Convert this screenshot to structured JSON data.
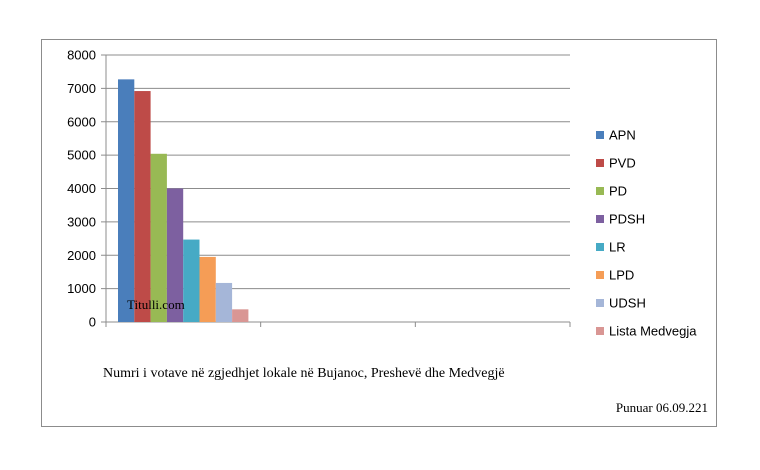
{
  "chart_data": {
    "type": "bar",
    "categories": [
      ""
    ],
    "series": [
      {
        "name": "APN",
        "values": [
          7270
        ],
        "color": "#4a7ebb"
      },
      {
        "name": "PVD",
        "values": [
          6920
        ],
        "color": "#be4b48"
      },
      {
        "name": "PD",
        "values": [
          5040
        ],
        "color": "#98b954"
      },
      {
        "name": "PDSH",
        "values": [
          4000
        ],
        "color": "#7d60a0"
      },
      {
        "name": "LR",
        "values": [
          2470
        ],
        "color": "#46aac5"
      },
      {
        "name": "LPD",
        "values": [
          1950
        ],
        "color": "#f59d56"
      },
      {
        "name": "UDSH",
        "values": [
          1170
        ],
        "color": "#a5b6d8"
      },
      {
        "name": "Lista Medvegja",
        "values": [
          380
        ],
        "color": "#d99694"
      }
    ],
    "yticks": [
      "0",
      "1000",
      "2000",
      "3000",
      "4000",
      "5000",
      "6000",
      "7000",
      "8000"
    ],
    "ylim": [
      0,
      8000
    ],
    "grid": true,
    "legend": "right"
  },
  "watermark": "Titulli.com",
  "caption": "Numri i votave në zgjedhjet lokale në Bujanoc, Preshevë dhe Medvegjë",
  "footnote": "Punuar 06.09.221"
}
